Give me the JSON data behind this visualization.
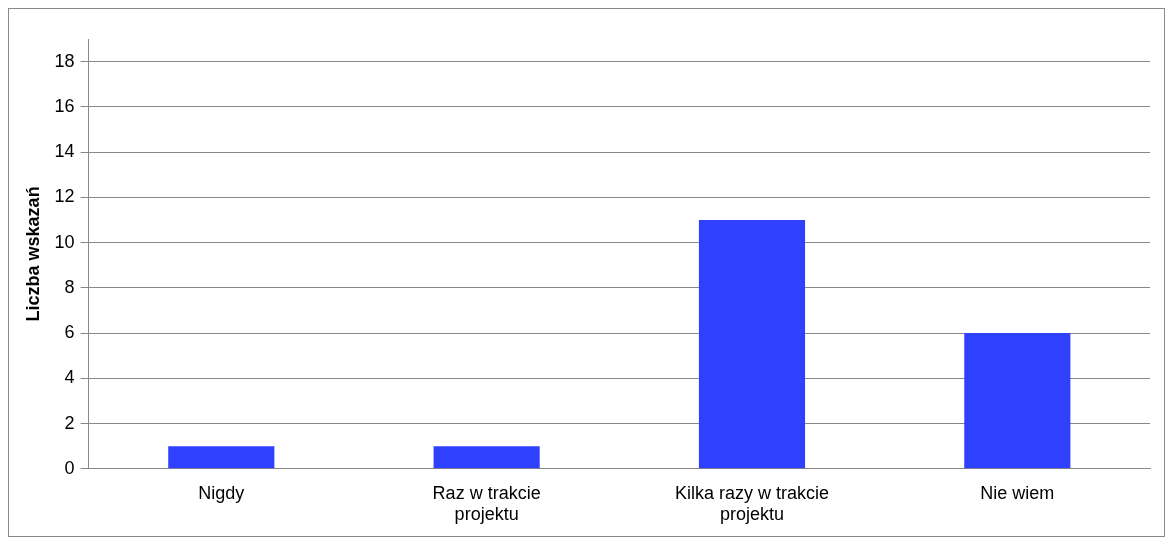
{
  "chart_data": {
    "type": "bar",
    "ylabel": "Liczba wskazań",
    "categories": [
      "Nigdy",
      "Raz w trakcie projektu",
      "Kilka razy w trakcie projektu",
      "Nie wiem"
    ],
    "values": [
      1,
      1,
      11,
      6
    ],
    "color": "#3040ff",
    "ylim": [
      0,
      19
    ],
    "yticks": [
      0,
      2,
      4,
      6,
      8,
      10,
      12,
      14,
      16,
      18
    ],
    "grid": "y",
    "legend": false
  }
}
